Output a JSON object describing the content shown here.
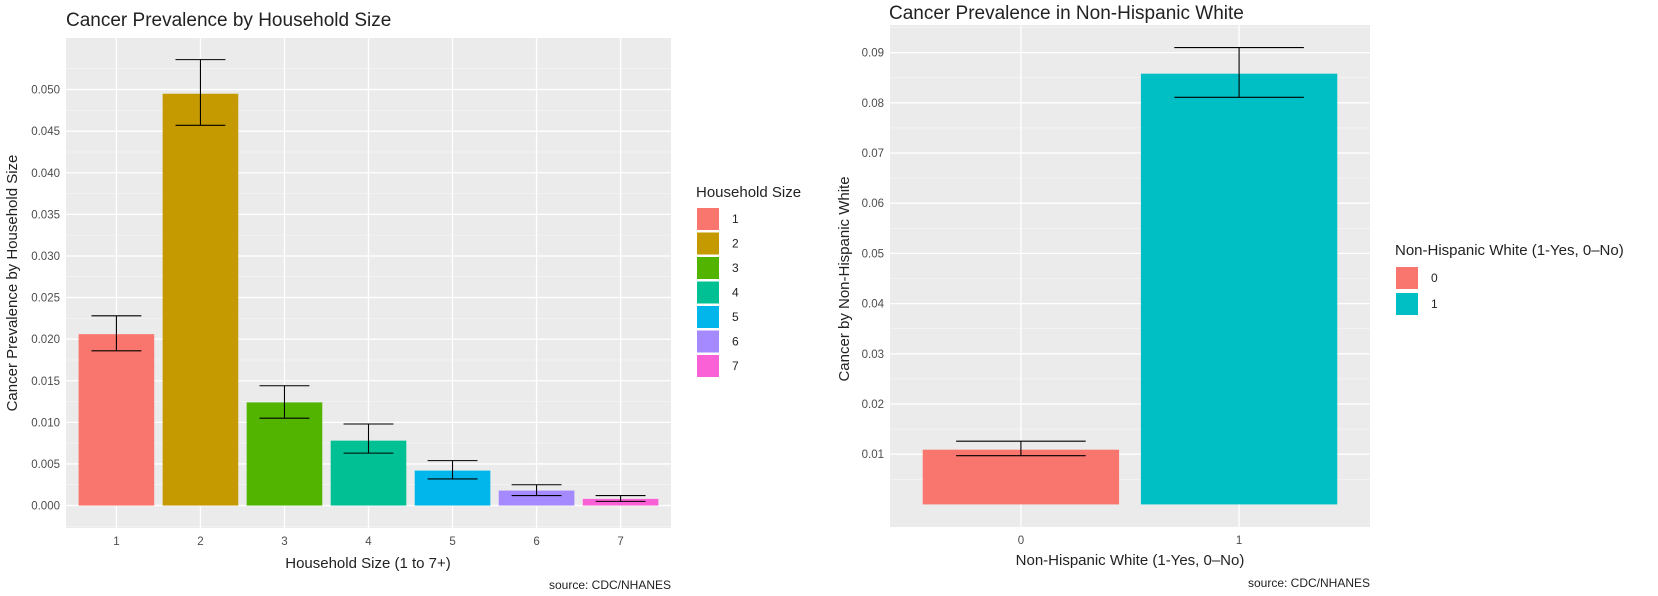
{
  "chart_data": [
    {
      "type": "bar",
      "title": "Cancer Prevalence by Household Size",
      "xlabel": "Household Size (1 to 7+)",
      "ylabel": "Cancer Prevalence by Household Size",
      "caption": "source: CDC/NHANES",
      "categories": [
        "1",
        "2",
        "3",
        "4",
        "5",
        "6",
        "7"
      ],
      "values": [
        0.0206,
        0.0495,
        0.0124,
        0.0078,
        0.0042,
        0.0018,
        0.0008
      ],
      "error_low": [
        0.0186,
        0.0457,
        0.0105,
        0.0063,
        0.0032,
        0.0012,
        0.0005
      ],
      "error_high": [
        0.0228,
        0.0536,
        0.0144,
        0.0098,
        0.0054,
        0.0025,
        0.0012
      ],
      "colors": [
        "#F8766D",
        "#C49A00",
        "#53B400",
        "#00C094",
        "#00B6EB",
        "#A58AFF",
        "#FB61D7"
      ],
      "yticks": [
        "0.000",
        "0.005",
        "0.010",
        "0.015",
        "0.020",
        "0.025",
        "0.030",
        "0.035",
        "0.040",
        "0.045",
        "0.050"
      ],
      "ylim": [
        -0.0027,
        0.0562
      ],
      "legend": {
        "title": "Household Size",
        "labels": [
          "1",
          "2",
          "3",
          "4",
          "5",
          "6",
          "7"
        ],
        "position": "right"
      },
      "grid": true
    },
    {
      "type": "bar",
      "title": "Cancer Prevalence in Non-Hispanic White",
      "xlabel": "Non-Hispanic White (1-Yes, 0–No)",
      "ylabel": "Cancer by Non-Hispanic White",
      "caption": "source: CDC/NHANES",
      "categories": [
        "0",
        "1"
      ],
      "values": [
        0.0109,
        0.0858
      ],
      "error_low": [
        0.0097,
        0.0811
      ],
      "error_high": [
        0.0126,
        0.091
      ],
      "colors": [
        "#F8766D",
        "#00BFC4"
      ],
      "yticks": [
        "0.01",
        "0.02",
        "0.03",
        "0.04",
        "0.05",
        "0.06",
        "0.07",
        "0.08",
        "0.09"
      ],
      "ylim": [
        -0.0045,
        0.0955
      ],
      "legend": {
        "title": "Non-Hispanic White (1-Yes, 0–No)",
        "labels": [
          "0",
          "1"
        ],
        "position": "right"
      },
      "grid": true
    }
  ]
}
